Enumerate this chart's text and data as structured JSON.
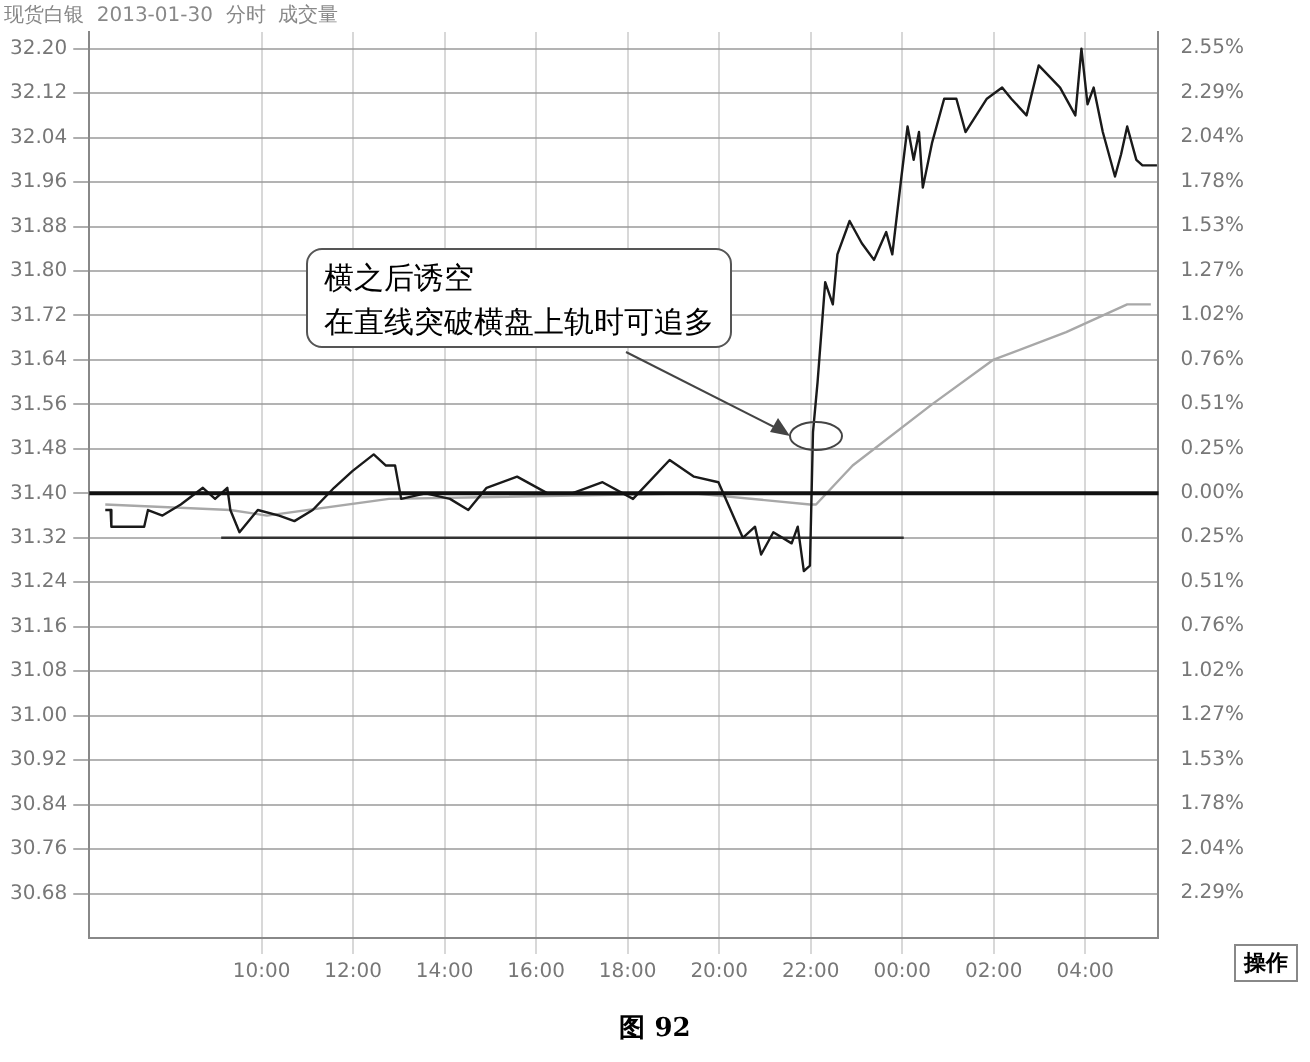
{
  "chart_data": {
    "type": "line",
    "title": "现货白银  2013-01-30  分时  成交量",
    "xlim": [
      "2013-01-30T06:14",
      "2013-01-31T05:36"
    ],
    "xticks": [
      {
        "value": "2013-01-30T10:00",
        "label": "10:00"
      },
      {
        "value": "2013-01-30T12:00",
        "label": "12:00"
      },
      {
        "value": "2013-01-30T14:00",
        "label": "14:00"
      },
      {
        "value": "2013-01-30T16:00",
        "label": "16:00"
      },
      {
        "value": "2013-01-30T18:00",
        "label": "18:00"
      },
      {
        "value": "2013-01-30T20:00",
        "label": "20:00"
      },
      {
        "value": "2013-01-30T22:00",
        "label": "22:00"
      },
      {
        "value": "2013-01-31T00:00",
        "label": "00:00"
      },
      {
        "value": "2013-01-31T02:00",
        "label": "02:00"
      },
      {
        "value": "2013-01-31T04:00",
        "label": "04:00"
      }
    ],
    "ylim": [
      30.6,
      32.23
    ],
    "yticks": [
      {
        "value": 30.68,
        "label": "30.68"
      },
      {
        "value": 30.76,
        "label": "30.76"
      },
      {
        "value": 30.84,
        "label": "30.84"
      },
      {
        "value": 30.92,
        "label": "30.92"
      },
      {
        "value": 31,
        "label": "31.00"
      },
      {
        "value": 31.08,
        "label": "31.08"
      },
      {
        "value": 31.16,
        "label": "31.16"
      },
      {
        "value": 31.24,
        "label": "31.24"
      },
      {
        "value": 31.32,
        "label": "31.32"
      },
      {
        "value": 31.4,
        "label": "31.40"
      },
      {
        "value": 31.48,
        "label": "31.48"
      },
      {
        "value": 31.56,
        "label": "31.56"
      },
      {
        "value": 31.64,
        "label": "31.64"
      },
      {
        "value": 31.72,
        "label": "31.72"
      },
      {
        "value": 31.8,
        "label": "31.80"
      },
      {
        "value": 31.88,
        "label": "31.88"
      },
      {
        "value": 31.96,
        "label": "31.96"
      },
      {
        "value": 32.04,
        "label": "32.04"
      },
      {
        "value": 32.12,
        "label": "32.12"
      },
      {
        "value": 32.2,
        "label": "32.20"
      }
    ],
    "y2lim": [
      -2.55,
      2.64
    ],
    "y2ticks": [
      {
        "value": -2.29,
        "label": "2.29%"
      },
      {
        "value": -2.04,
        "label": "2.04%"
      },
      {
        "value": -1.78,
        "label": "1.78%"
      },
      {
        "value": -1.53,
        "label": "1.53%"
      },
      {
        "value": -1.27,
        "label": "1.27%"
      },
      {
        "value": -1.02,
        "label": "1.02%"
      },
      {
        "value": -0.76,
        "label": "0.76%"
      },
      {
        "value": -0.51,
        "label": "0.51%"
      },
      {
        "value": -0.25,
        "label": "0.25%"
      },
      {
        "value": 0,
        "label": "0.00%"
      },
      {
        "value": 0.25,
        "label": "0.25%"
      },
      {
        "value": 0.51,
        "label": "0.51%"
      },
      {
        "value": 0.76,
        "label": "0.76%"
      },
      {
        "value": 1.02,
        "label": "1.02%"
      },
      {
        "value": 1.27,
        "label": "1.27%"
      },
      {
        "value": 1.53,
        "label": "1.53%"
      },
      {
        "value": 1.78,
        "label": "1.78%"
      },
      {
        "value": 2.04,
        "label": "2.04%"
      },
      {
        "value": 2.29,
        "label": "2.29%"
      },
      {
        "value": 2.55,
        "label": "2.55%"
      }
    ],
    "grid": true,
    "legend": false,
    "marker": "none",
    "line_style": "solid",
    "series": [
      {
        "color": "#1a1a1a",
        "x": [
          "2013-01-30T06:35",
          "2013-01-30T06:42",
          "2013-01-30T06:43",
          "2013-01-30T07:26",
          "2013-01-30T07:31",
          "2013-01-30T07:50",
          "2013-01-30T08:14",
          "2013-01-30T08:43",
          "2013-01-30T08:59",
          "2013-01-30T09:15",
          "2013-01-30T09:19",
          "2013-01-30T09:31",
          "2013-01-30T09:55",
          "2013-01-30T10:23",
          "2013-01-30T10:43",
          "2013-01-30T11:07",
          "2013-01-30T11:35",
          "2013-01-30T11:59",
          "2013-01-30T12:27",
          "2013-01-30T12:43",
          "2013-01-30T12:55",
          "2013-01-30T13:03",
          "2013-01-30T13:35",
          "2013-01-30T14:07",
          "2013-01-30T14:31",
          "2013-01-30T14:55",
          "2013-01-30T15:35",
          "2013-01-30T16:15",
          "2013-01-30T16:47",
          "2013-01-30T17:27",
          "2013-01-30T18:07",
          "2013-01-30T18:55",
          "2013-01-30T19:27",
          "2013-01-30T19:59",
          "2013-01-30T20:15",
          "2013-01-30T20:31",
          "2013-01-30T20:47",
          "2013-01-30T20:55",
          "2013-01-30T21:11",
          "2013-01-30T21:35",
          "2013-01-30T21:43",
          "2013-01-30T21:51",
          "2013-01-30T21:59",
          "2013-01-30T22:03",
          "2013-01-30T22:09",
          "2013-01-30T22:19",
          "2013-01-30T22:29",
          "2013-01-30T22:35",
          "2013-01-30T22:51",
          "2013-01-30T23:07",
          "2013-01-30T23:23",
          "2013-01-30T23:39",
          "2013-01-30T23:47",
          "2013-01-30T23:59",
          "2013-01-31T00:07",
          "2013-01-31T00:15",
          "2013-01-31T00:22",
          "2013-01-31T00:27",
          "2013-01-31T00:39",
          "2013-01-31T00:55",
          "2013-01-31T01:11",
          "2013-01-31T01:23",
          "2013-01-31T01:51",
          "2013-01-31T02:11",
          "2013-01-31T02:23",
          "2013-01-31T02:43",
          "2013-01-31T02:59",
          "2013-01-31T03:27",
          "2013-01-31T03:47",
          "2013-01-31T03:55",
          "2013-01-31T04:03",
          "2013-01-31T04:11",
          "2013-01-31T04:23",
          "2013-01-31T04:39",
          "2013-01-31T04:47",
          "2013-01-31T04:55",
          "2013-01-31T05:07",
          "2013-01-31T05:15",
          "2013-01-31T05:34"
        ],
        "values": [
          31.37,
          31.37,
          31.34,
          31.34,
          31.37,
          31.36,
          31.38,
          31.41,
          31.39,
          31.41,
          31.37,
          31.33,
          31.37,
          31.36,
          31.35,
          31.37,
          31.41,
          31.44,
          31.47,
          31.45,
          31.45,
          31.39,
          31.4,
          31.39,
          31.37,
          31.41,
          31.43,
          31.4,
          31.4,
          31.42,
          31.39,
          31.46,
          31.43,
          31.42,
          31.37,
          31.32,
          31.34,
          31.29,
          31.33,
          31.31,
          31.34,
          31.26,
          31.27,
          31.51,
          31.6,
          31.78,
          31.74,
          31.83,
          31.89,
          31.85,
          31.82,
          31.87,
          31.83,
          31.97,
          32.06,
          32.0,
          32.05,
          31.95,
          32.03,
          32.11,
          32.11,
          32.05,
          32.11,
          32.13,
          32.11,
          32.08,
          32.17,
          32.13,
          32.08,
          32.2,
          32.1,
          32.13,
          32.05,
          31.97,
          32.01,
          32.06,
          32.0,
          31.99,
          31.99
        ]
      },
      {
        "color": "#a8a8a8",
        "x": [
          "2013-01-30T06:35",
          "2013-01-30T09:19",
          "2013-01-30T10:07",
          "2013-01-30T12:47",
          "2013-01-30T19:26",
          "2013-01-30T21:59",
          "2013-01-30T22:07",
          "2013-01-30T22:55",
          "2013-01-31T00:39",
          "2013-01-31T01:59",
          "2013-01-31T03:35",
          "2013-01-31T04:55",
          "2013-01-31T05:26"
        ],
        "values": [
          31.38,
          31.37,
          31.36,
          31.39,
          31.4,
          31.38,
          31.38,
          31.45,
          31.56,
          31.64,
          31.69,
          31.74,
          31.74
        ]
      },
      {
        "color": "#333333",
        "x": [
          "2013-01-30T09:07",
          "2013-01-31T00:02"
        ],
        "values": [
          31.32,
          31.32
        ]
      }
    ],
    "ref_lines": [
      {
        "axis": "y",
        "value": 31.4,
        "color": "#111111"
      }
    ],
    "annotations": [
      "横之后诱空",
      "在直线突破横盘上轨时可追多",
      "操作",
      "图 92"
    ]
  }
}
